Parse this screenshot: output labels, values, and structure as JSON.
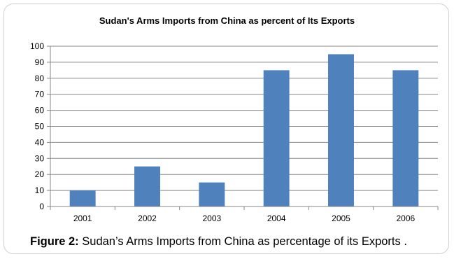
{
  "chart_data": {
    "type": "bar",
    "title": "Sudan's Arms Imports from China as percent of Its Exports",
    "categories": [
      "2001",
      "2002",
      "2003",
      "2004",
      "2005",
      "2006"
    ],
    "values": [
      10,
      25,
      15,
      85,
      95,
      85
    ],
    "ylim": [
      0,
      100
    ],
    "yticks": [
      0,
      10,
      20,
      30,
      40,
      50,
      60,
      70,
      80,
      90,
      100
    ],
    "xlabel": "",
    "ylabel": "",
    "grid": true,
    "bar_color": "#4f81bd",
    "grid_color": "#878787"
  },
  "caption": {
    "label": "Figure 2:",
    "text": " Sudan’s Arms Imports from China as percentage of its Exports ."
  }
}
